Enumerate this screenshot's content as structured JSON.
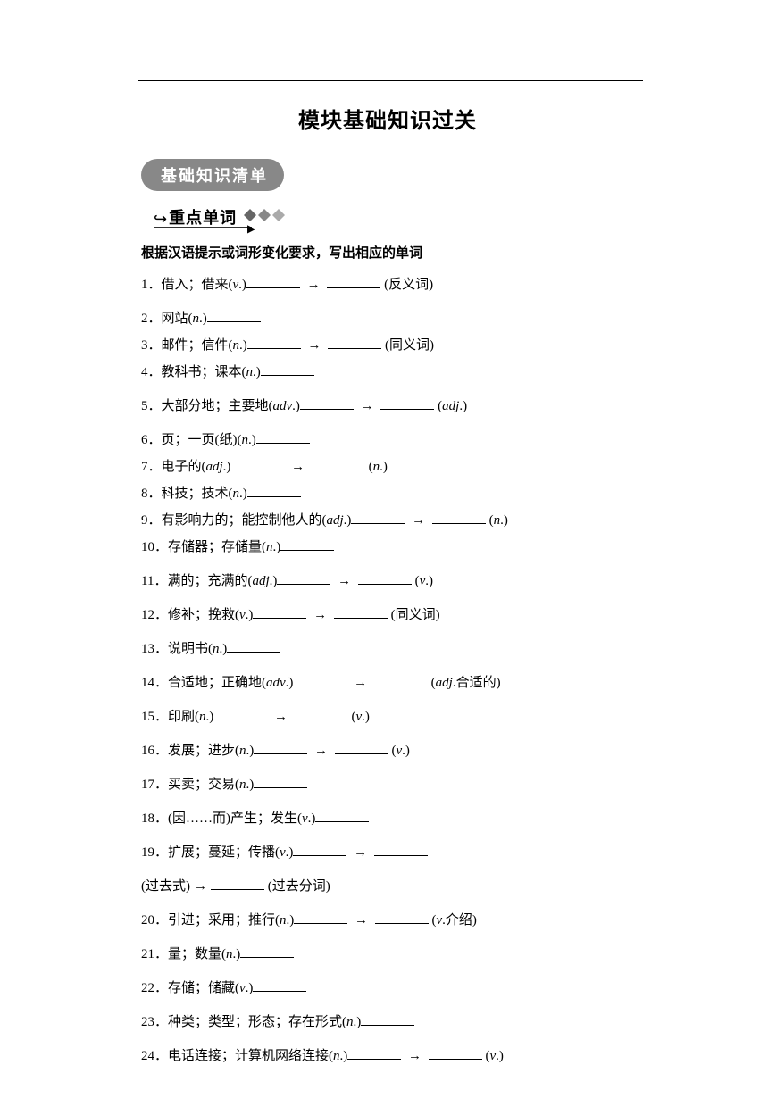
{
  "title": "模块基础知识过关",
  "badge": "基础知识清单",
  "sub_heading": "重点单词",
  "instruction": "根据汉语提示或词形变化要求，写出相应的单词",
  "items": [
    {
      "n": "1",
      "text": "借入；借来(v.)",
      "tail": "(反义词)",
      "arrows": 1,
      "tight": false
    },
    {
      "n": "2",
      "text": "网站(n.)",
      "arrows": 0,
      "tight": true
    },
    {
      "n": "3",
      "text": "邮件；信件(n.)",
      "tail": "(同义词)",
      "arrows": 1,
      "tight": true
    },
    {
      "n": "4",
      "text": "教科书；课本(n.)",
      "arrows": 0,
      "tight": false
    },
    {
      "n": "5",
      "text": "大部分地；主要地(adv.)",
      "tail": "(adj.)",
      "arrows": 1,
      "tight": false
    },
    {
      "n": "6",
      "text": "页；一页(纸)(n.)",
      "arrows": 0,
      "tight": true
    },
    {
      "n": "7",
      "text": "电子的(adj.)",
      "tail": "(n.)",
      "arrows": 1,
      "tight": true
    },
    {
      "n": "8",
      "text": "科技；技术(n.)",
      "arrows": 0,
      "tight": true
    },
    {
      "n": "9",
      "text": "有影响力的；能控制他人的(adj.)",
      "tail": "(n.)",
      "arrows": 1,
      "tight": true
    },
    {
      "n": "10",
      "text": "存储器；存储量(n.)",
      "arrows": 0,
      "tight": false
    },
    {
      "n": "11",
      "text": "满的；充满的(adj.)",
      "tail": "(v.)",
      "arrows": 1,
      "tight": false
    },
    {
      "n": "12",
      "text": "修补；挽救(v.)",
      "tail": "(同义词)",
      "arrows": 1,
      "tight": false
    },
    {
      "n": "13",
      "text": "说明书(n.)",
      "arrows": 0,
      "tight": false
    },
    {
      "n": "14",
      "text": "合适地；正确地(adv.)",
      "tail": "(adj.合适的)",
      "arrows": 1,
      "tight": false
    },
    {
      "n": "15",
      "text": "印刷(n.)",
      "tail": "(v.)",
      "arrows": 1,
      "tight": false
    },
    {
      "n": "16",
      "text": "发展；进步(n.)",
      "tail": "(v.)",
      "arrows": 1,
      "tight": false
    },
    {
      "n": "17",
      "text": "买卖；交易(n.)",
      "arrows": 0,
      "tight": false
    },
    {
      "n": "18",
      "text": "(因……而)产生；发生(v.)",
      "arrows": 0,
      "tight": false
    },
    {
      "n": "19",
      "text": "扩展；蔓延；传播(v.)",
      "arrows": 1,
      "tight": false,
      "tail": ""
    },
    {
      "n": "",
      "text": "(过去式)",
      "arrows": 0,
      "tight": false,
      "extra_tail": "(过去分词)",
      "prefix_arrow": true
    },
    {
      "n": "20",
      "text": "引进；采用；推行(n.)",
      "tail": "(v.介绍)",
      "arrows": 1,
      "tight": false
    },
    {
      "n": "21",
      "text": "量；数量(n.)",
      "arrows": 0,
      "tight": false
    },
    {
      "n": "22",
      "text": "存储；储藏(v.)",
      "arrows": 0,
      "tight": false
    },
    {
      "n": "23",
      "text": "种类；类型；形态；存在形式(n.)",
      "arrows": 0,
      "tight": false
    },
    {
      "n": "24",
      "text": "电话连接；计算机网络连接(n.)",
      "tail": "(v.)",
      "arrows": 1,
      "tight": false
    }
  ]
}
